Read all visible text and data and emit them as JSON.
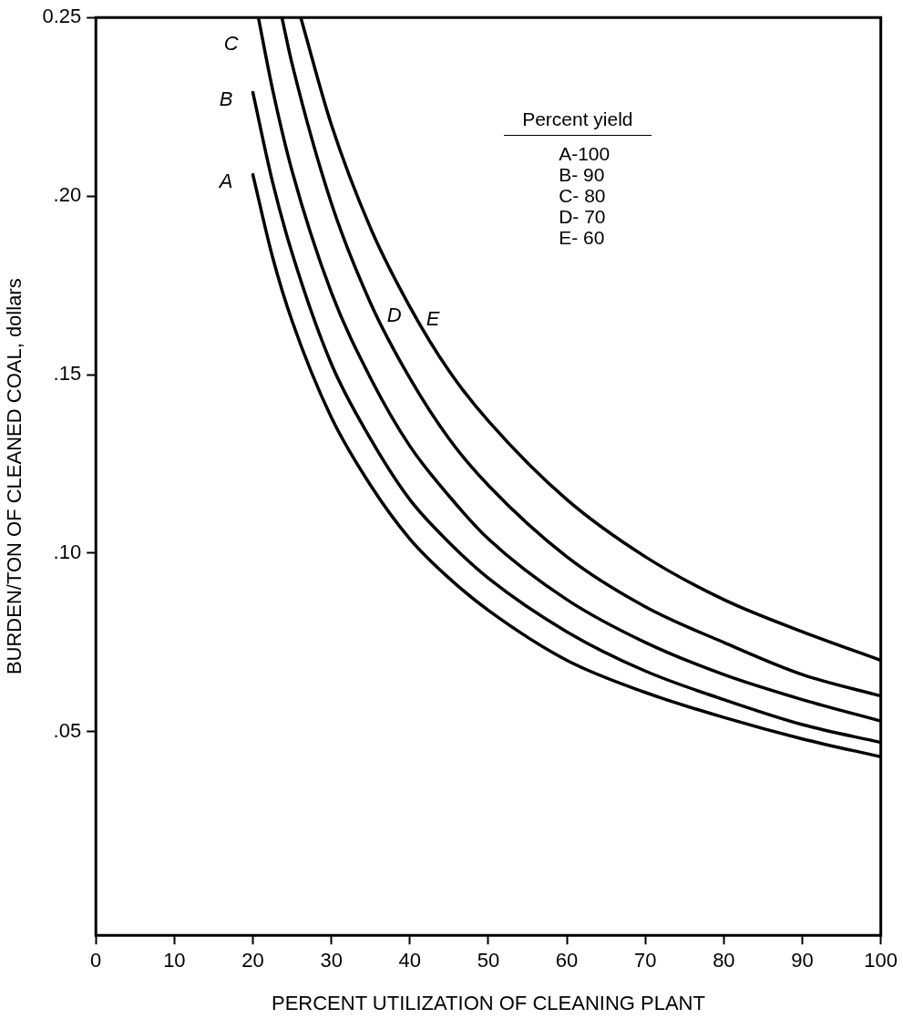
{
  "chart_data": {
    "type": "line",
    "xlabel": "PERCENT UTILIZATION OF CLEANING PLANT",
    "ylabel": "BURDEN/TON OF CLEANED COAL, dollars",
    "xlim": [
      0,
      100
    ],
    "xticks": [
      0,
      10,
      20,
      30,
      40,
      50,
      60,
      70,
      80,
      90,
      100
    ],
    "ylim": [
      -0.007,
      0.25
    ],
    "yticks": [
      {
        "value": 0.05,
        "label": ".05"
      },
      {
        "value": 0.1,
        "label": ".10"
      },
      {
        "value": 0.15,
        "label": ".15"
      },
      {
        "value": 0.2,
        "label": ".20"
      },
      {
        "value": 0.25,
        "label": "0.25"
      }
    ],
    "grid": false,
    "legend": false,
    "marker": "none",
    "line_style": "solid",
    "annotations": [
      "Percent yield",
      "A-100",
      "B- 90",
      "C- 80",
      "D- 70",
      "E- 60"
    ],
    "series": [
      {
        "name": "A",
        "color": "#000000",
        "x": [
          20,
          22.5,
          25,
          30,
          35,
          40,
          45,
          50,
          60,
          70,
          80,
          90,
          100
        ],
        "values": [
          0.206,
          0.183,
          0.165,
          0.138,
          0.119,
          0.104,
          0.093,
          0.084,
          0.07,
          0.061,
          0.054,
          0.048,
          0.043
        ]
      },
      {
        "name": "B",
        "color": "#000000",
        "x": [
          20,
          22.5,
          25,
          30,
          35,
          40,
          45,
          50,
          60,
          70,
          80,
          90,
          100
        ],
        "values": [
          0.229,
          0.204,
          0.184,
          0.153,
          0.132,
          0.115,
          0.103,
          0.093,
          0.078,
          0.067,
          0.059,
          0.052,
          0.047
        ]
      },
      {
        "name": "C",
        "color": "#000000",
        "x": [
          20.7,
          22.5,
          25,
          30,
          35,
          40,
          45,
          50,
          60,
          70,
          80,
          90,
          100
        ],
        "values": [
          0.25,
          0.23,
          0.207,
          0.173,
          0.149,
          0.13,
          0.116,
          0.104,
          0.087,
          0.075,
          0.066,
          0.059,
          0.053
        ]
      },
      {
        "name": "D",
        "color": "#000000",
        "x": [
          23.7,
          25,
          30,
          35,
          40,
          45,
          50,
          60,
          70,
          80,
          90,
          100
        ],
        "values": [
          0.25,
          0.237,
          0.198,
          0.17,
          0.149,
          0.132,
          0.119,
          0.099,
          0.085,
          0.075,
          0.066,
          0.06
        ]
      },
      {
        "name": "E",
        "color": "#000000",
        "x": [
          26.1,
          30,
          35,
          40,
          45,
          50,
          60,
          70,
          80,
          90,
          100
        ],
        "values": [
          0.25,
          0.22,
          0.191,
          0.169,
          0.151,
          0.137,
          0.115,
          0.099,
          0.087,
          0.078,
          0.07
        ]
      }
    ]
  }
}
